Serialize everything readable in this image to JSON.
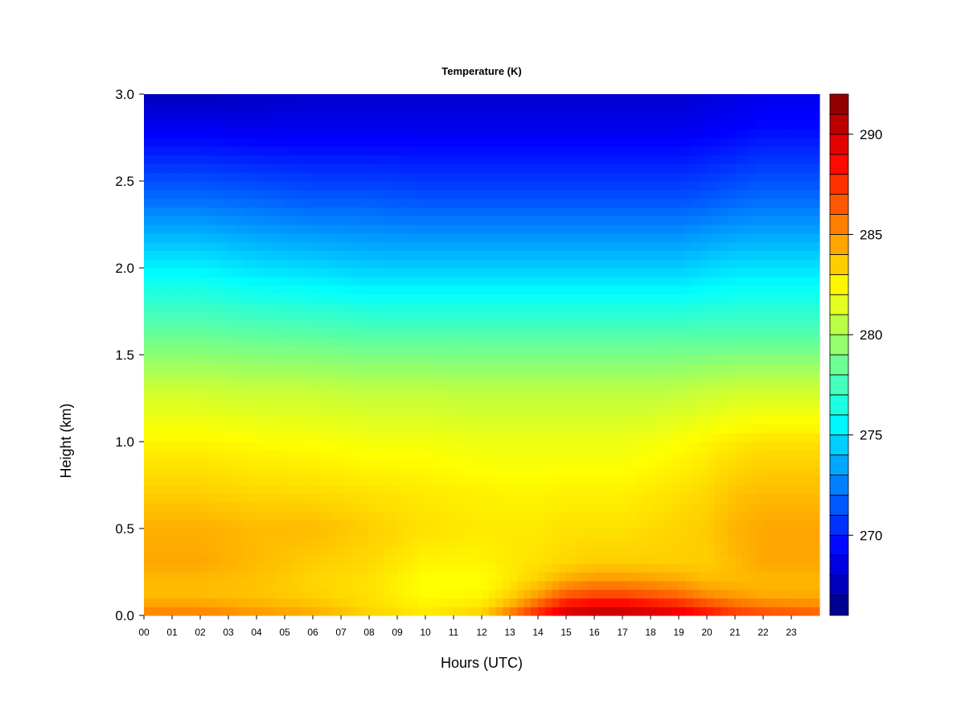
{
  "chart_data": {
    "type": "heatmap",
    "title": "Temperature (K)",
    "xlabel": "Hours (UTC)",
    "ylabel": "Height (km)",
    "xlim": [
      0,
      24
    ],
    "ylim": [
      0,
      3
    ],
    "x_ticks": [
      "00",
      "01",
      "02",
      "03",
      "04",
      "05",
      "06",
      "07",
      "08",
      "09",
      "10",
      "11",
      "12",
      "13",
      "14",
      "15",
      "16",
      "17",
      "18",
      "19",
      "20",
      "21",
      "22",
      "23"
    ],
    "y_ticks": [
      "0.0",
      "0.5",
      "1.0",
      "1.5",
      "2.0",
      "2.5",
      "3.0"
    ],
    "colorbar": {
      "min": 266,
      "max": 292,
      "step": 1,
      "ticks": [
        "270",
        "275",
        "280",
        "285",
        "290"
      ],
      "tick_values": [
        270,
        275,
        280,
        285,
        290
      ]
    },
    "heights_km": [
      0.0,
      0.05,
      0.1,
      0.2,
      0.3,
      0.5,
      0.7,
      1.0,
      1.3,
      1.6,
      2.0,
      2.4,
      2.8,
      3.0
    ],
    "hours": [
      0,
      2,
      4,
      6,
      8,
      10,
      12,
      13,
      14,
      15,
      16,
      17,
      18,
      19,
      20,
      21,
      22,
      24
    ],
    "values_K": [
      [
        285.5,
        285.5,
        285.0,
        284.5,
        283.5,
        282.8,
        283.5,
        286.0,
        288.0,
        290.0,
        290.5,
        290.5,
        290.0,
        289.5,
        288.5,
        287.5,
        287.0,
        286.5
      ],
      [
        285.0,
        285.0,
        284.5,
        284.0,
        283.2,
        282.6,
        283.0,
        284.5,
        287.0,
        289.0,
        289.5,
        289.5,
        289.0,
        288.5,
        287.5,
        286.5,
        286.0,
        285.5
      ],
      [
        284.0,
        284.0,
        283.8,
        283.5,
        283.0,
        282.3,
        282.5,
        283.5,
        285.0,
        287.0,
        287.5,
        287.5,
        287.0,
        286.5,
        285.5,
        285.0,
        284.5,
        284.5
      ],
      [
        284.0,
        284.0,
        283.8,
        283.3,
        283.0,
        282.2,
        282.2,
        282.8,
        283.5,
        284.5,
        285.0,
        285.0,
        284.8,
        284.5,
        284.0,
        284.0,
        284.0,
        284.0
      ],
      [
        284.5,
        284.5,
        284.0,
        283.5,
        283.2,
        282.5,
        282.5,
        282.8,
        283.0,
        283.3,
        283.5,
        283.5,
        283.5,
        283.5,
        283.5,
        284.0,
        284.5,
        284.5
      ],
      [
        284.3,
        284.3,
        284.0,
        284.0,
        283.5,
        283.0,
        282.8,
        282.8,
        282.8,
        283.0,
        283.0,
        283.0,
        283.2,
        283.4,
        283.6,
        284.2,
        284.5,
        284.5
      ],
      [
        283.5,
        283.5,
        283.3,
        283.2,
        283.0,
        282.8,
        282.6,
        282.5,
        282.5,
        282.6,
        282.6,
        282.6,
        282.8,
        283.0,
        283.3,
        283.8,
        284.0,
        284.0
      ],
      [
        282.5,
        282.5,
        282.3,
        282.2,
        282.0,
        282.0,
        281.8,
        281.8,
        281.8,
        281.8,
        281.8,
        281.8,
        282.0,
        282.2,
        282.5,
        282.8,
        283.0,
        283.0
      ],
      [
        281.0,
        281.0,
        280.8,
        280.8,
        280.6,
        280.6,
        280.5,
        280.5,
        280.5,
        280.5,
        280.5,
        280.5,
        280.5,
        280.6,
        280.8,
        281.0,
        281.0,
        281.0
      ],
      [
        278.5,
        278.5,
        278.3,
        278.2,
        278.0,
        278.0,
        278.0,
        278.0,
        278.0,
        278.0,
        278.0,
        278.0,
        278.0,
        278.0,
        278.0,
        278.0,
        278.0,
        278.0
      ],
      [
        275.5,
        275.5,
        275.0,
        274.8,
        274.5,
        274.5,
        274.5,
        274.5,
        274.5,
        274.5,
        274.5,
        274.5,
        274.5,
        274.5,
        274.8,
        275.0,
        275.0,
        275.0
      ],
      [
        272.0,
        272.0,
        271.8,
        271.5,
        271.5,
        271.3,
        271.3,
        271.3,
        271.3,
        271.3,
        271.3,
        271.3,
        271.3,
        271.3,
        271.5,
        271.8,
        272.0,
        272.0
      ],
      [
        269.0,
        269.0,
        268.8,
        268.8,
        268.8,
        268.8,
        268.8,
        268.8,
        268.8,
        268.8,
        268.8,
        268.8,
        268.8,
        268.8,
        269.0,
        269.2,
        269.5,
        269.5
      ],
      [
        267.5,
        267.5,
        267.8,
        268.0,
        268.0,
        268.0,
        268.0,
        268.0,
        268.0,
        268.0,
        268.0,
        268.0,
        268.0,
        268.0,
        268.3,
        268.5,
        268.8,
        268.8
      ]
    ],
    "grid": false,
    "legend": "colorbar-right"
  }
}
